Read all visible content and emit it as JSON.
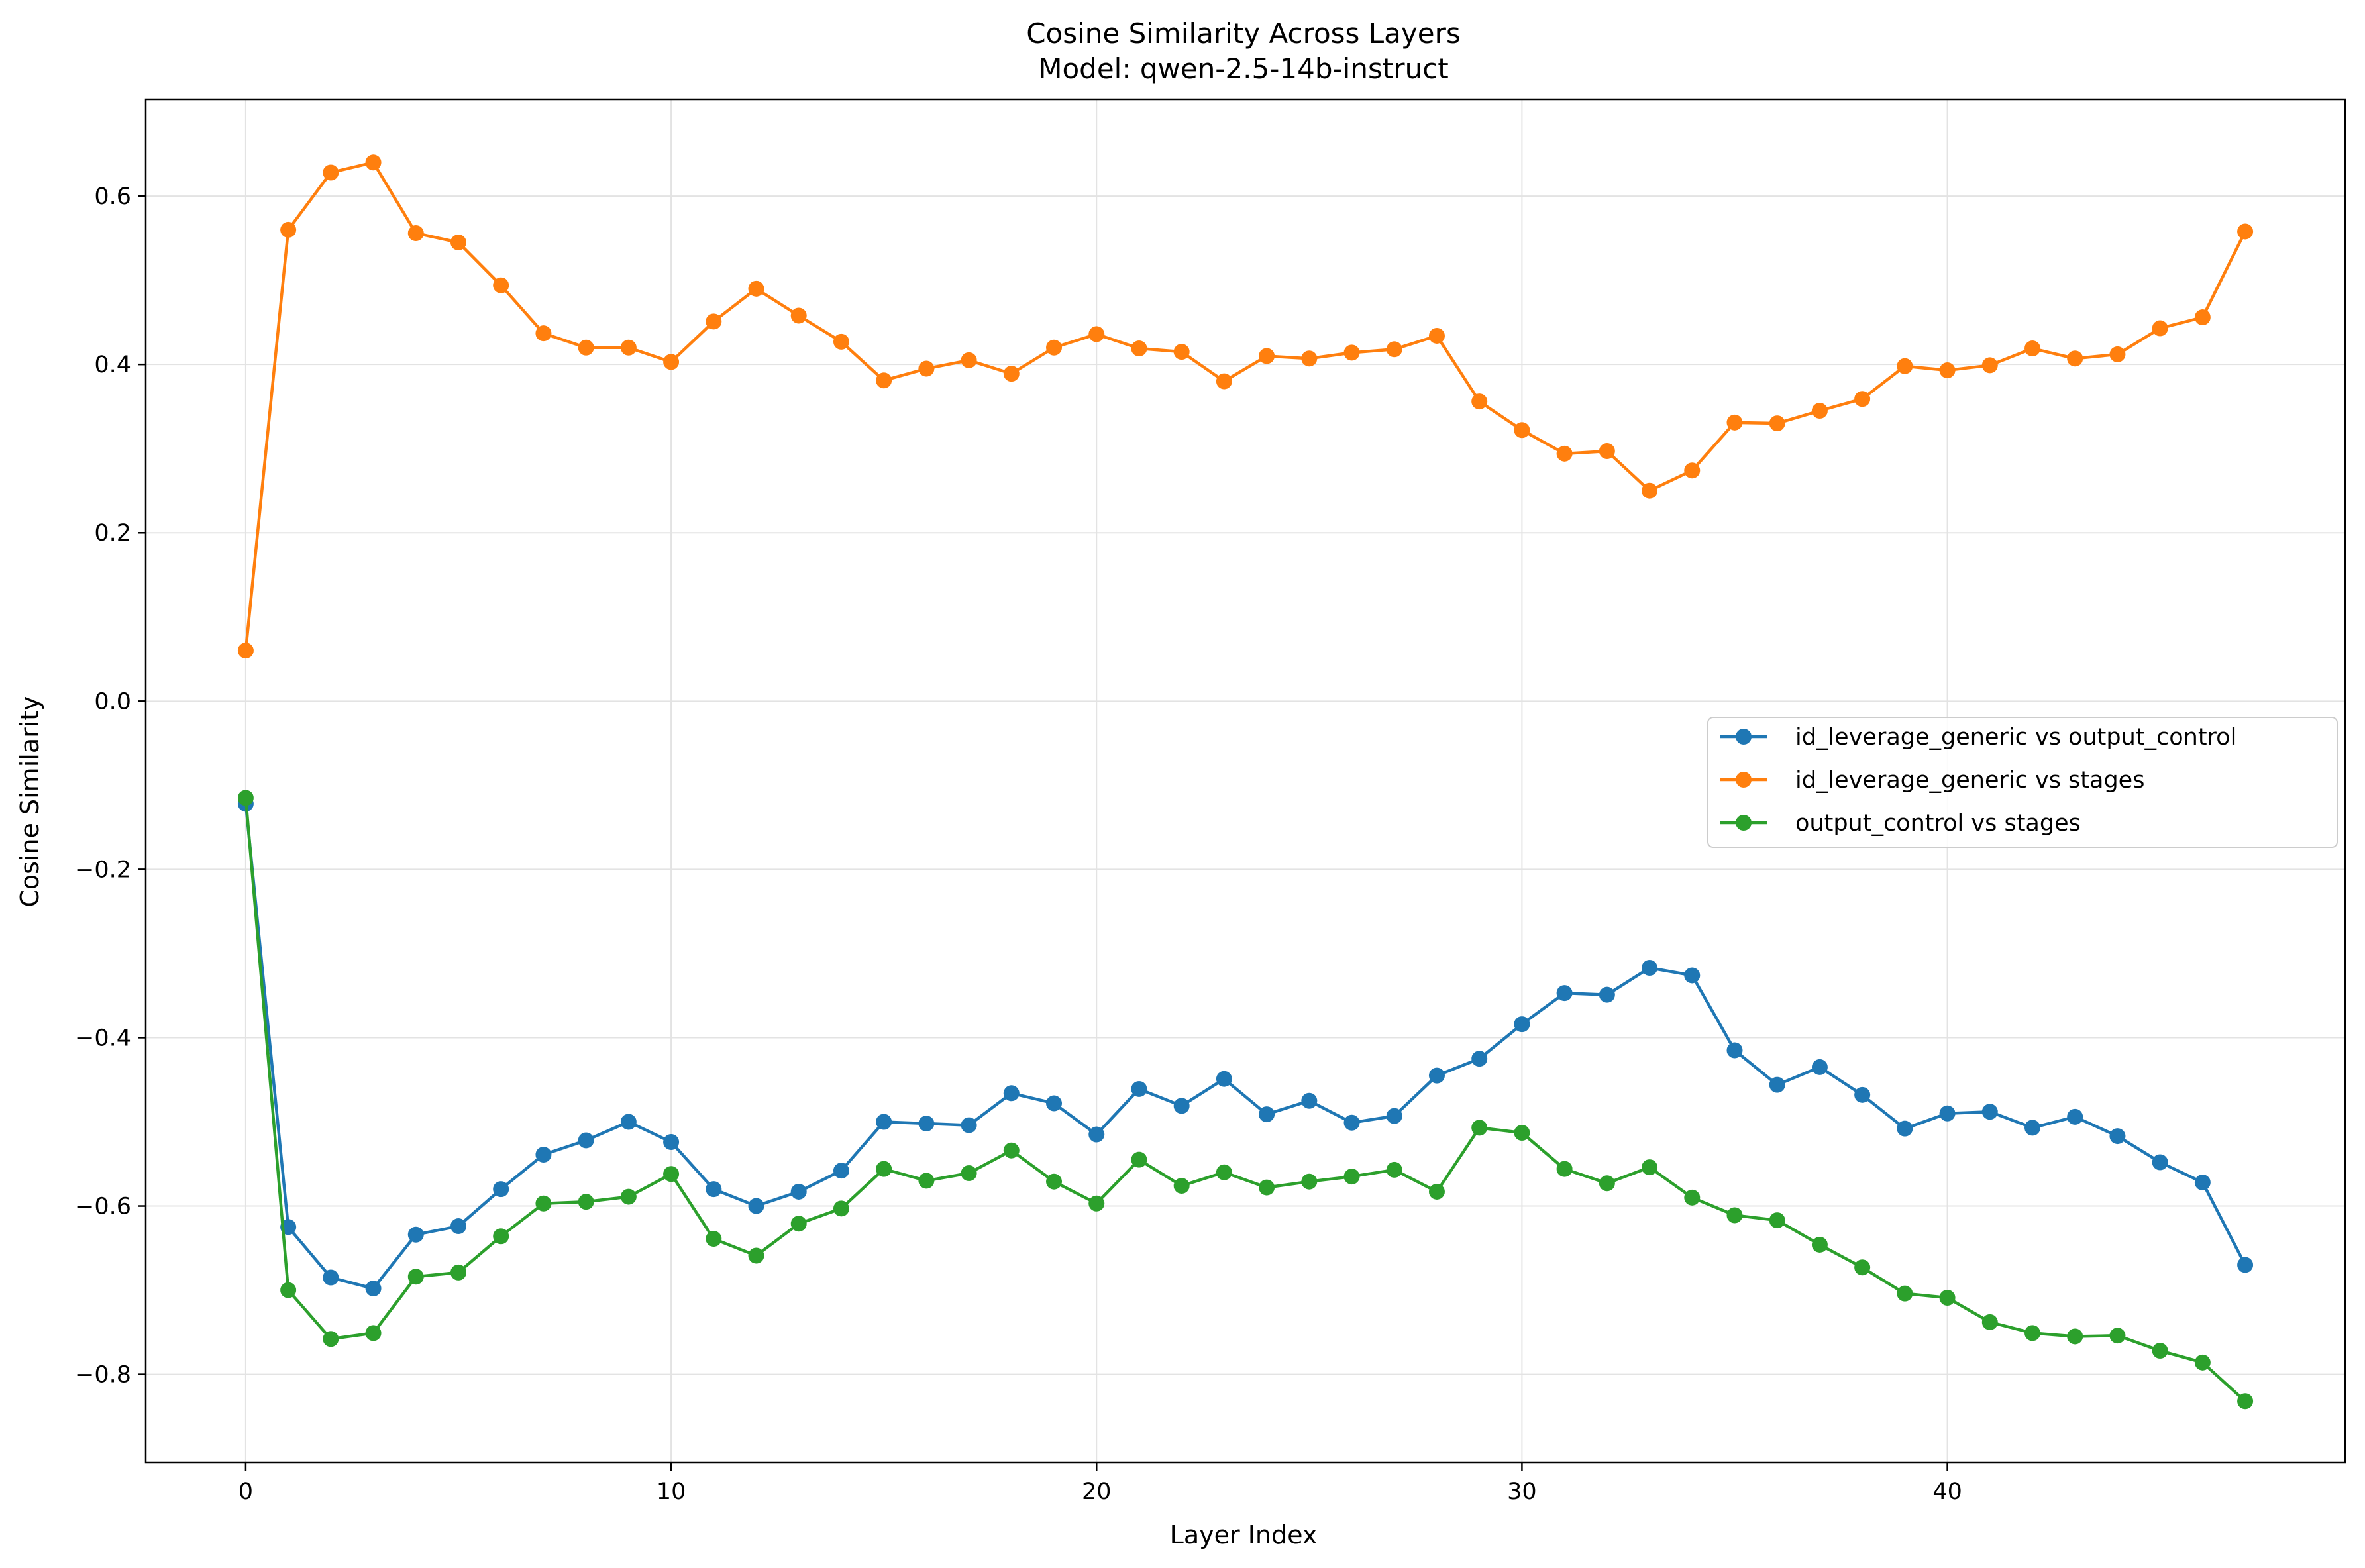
{
  "chart_data": {
    "type": "line",
    "title": "Cosine Similarity Across Layers",
    "subtitle": "Model: qwen-2.5-14b-instruct",
    "xlabel": "Layer Index",
    "ylabel": "Cosine Similarity",
    "xlim": [
      -2.35,
      49.35
    ],
    "ylim": [
      -0.905,
      0.715
    ],
    "xticks": [
      0,
      10,
      20,
      30,
      40
    ],
    "yticks": [
      -0.8,
      -0.6,
      -0.4,
      -0.2,
      0.0,
      0.2,
      0.4,
      0.6
    ],
    "ytick_labels": [
      "−0.8",
      "−0.6",
      "−0.4",
      "−0.2",
      "0.0",
      "0.2",
      "0.4",
      "0.6"
    ],
    "grid": true,
    "legend_position": "center-right",
    "x": [
      0,
      1,
      2,
      3,
      4,
      5,
      6,
      7,
      8,
      9,
      10,
      11,
      12,
      13,
      14,
      15,
      16,
      17,
      18,
      19,
      20,
      21,
      22,
      23,
      24,
      25,
      26,
      27,
      28,
      29,
      30,
      31,
      32,
      33,
      34,
      35,
      36,
      37,
      38,
      39,
      40,
      41,
      42,
      43,
      44,
      45,
      46,
      47
    ],
    "series": [
      {
        "name": "id_leverage_generic vs output_control",
        "color": "#1f77b4",
        "values": [
          -0.122,
          -0.625,
          -0.685,
          -0.698,
          -0.634,
          -0.624,
          -0.58,
          -0.539,
          -0.522,
          -0.5,
          -0.524,
          -0.58,
          -0.6,
          -0.583,
          -0.558,
          -0.5,
          -0.502,
          -0.504,
          -0.466,
          -0.478,
          -0.515,
          -0.461,
          -0.481,
          -0.449,
          -0.491,
          -0.475,
          -0.501,
          -0.493,
          -0.445,
          -0.425,
          -0.384,
          -0.347,
          -0.349,
          -0.317,
          -0.326,
          -0.415,
          -0.456,
          -0.435,
          -0.468,
          -0.508,
          -0.49,
          -0.488,
          -0.507,
          -0.494,
          -0.517,
          -0.548,
          -0.572,
          -0.67
        ]
      },
      {
        "name": "id_leverage_generic vs stages",
        "color": "#ff7f0e",
        "values": [
          0.06,
          0.56,
          0.628,
          0.64,
          0.556,
          0.545,
          0.494,
          0.437,
          0.42,
          0.42,
          0.403,
          0.451,
          0.49,
          0.458,
          0.427,
          0.381,
          0.395,
          0.405,
          0.389,
          0.42,
          0.436,
          0.419,
          0.415,
          0.38,
          0.41,
          0.407,
          0.414,
          0.418,
          0.434,
          0.356,
          0.322,
          0.294,
          0.297,
          0.25,
          0.274,
          0.331,
          0.33,
          0.345,
          0.359,
          0.398,
          0.393,
          0.399,
          0.419,
          0.407,
          0.412,
          0.443,
          0.456,
          0.558
        ]
      },
      {
        "name": "output_control vs stages",
        "color": "#2ca02c",
        "values": [
          -0.115,
          -0.7,
          -0.758,
          -0.751,
          -0.684,
          -0.679,
          -0.636,
          -0.597,
          -0.595,
          -0.589,
          -0.562,
          -0.639,
          -0.659,
          -0.621,
          -0.603,
          -0.556,
          -0.57,
          -0.561,
          -0.534,
          -0.571,
          -0.597,
          -0.545,
          -0.576,
          -0.56,
          -0.578,
          -0.571,
          -0.565,
          -0.557,
          -0.583,
          -0.507,
          -0.513,
          -0.556,
          -0.573,
          -0.554,
          -0.59,
          -0.611,
          -0.617,
          -0.646,
          -0.673,
          -0.704,
          -0.709,
          -0.738,
          -0.751,
          -0.755,
          -0.754,
          -0.772,
          -0.786,
          -0.832
        ]
      }
    ]
  }
}
